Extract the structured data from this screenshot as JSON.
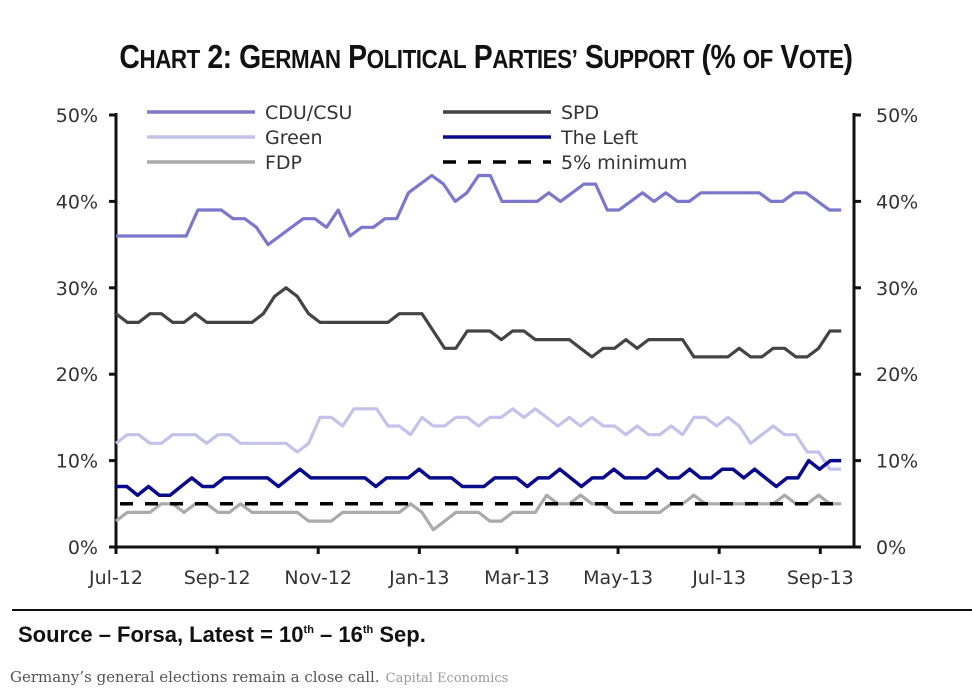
{
  "chart_data": {
    "type": "line",
    "title": "Chart 2: German Political Parties' Support (% of Vote)",
    "xlabel": "",
    "ylabel": "",
    "ylim": [
      0,
      50
    ],
    "y_ticks": [
      "0%",
      "10%",
      "20%",
      "30%",
      "40%",
      "50%"
    ],
    "y_tick_values": [
      0,
      10,
      20,
      30,
      40,
      50
    ],
    "x_tick_labels": [
      "Jul-12",
      "Sep-12",
      "Nov-12",
      "Jan-13",
      "Mar-13",
      "May-13",
      "Jul-13",
      "Sep-13"
    ],
    "x_tick_weeks": [
      0,
      8.7,
      17.4,
      26.1,
      34.5,
      43.2,
      51.9,
      60.6
    ],
    "x_range_weeks": [
      0,
      63.5
    ],
    "x_unit": "weekly polls",
    "legend_position": "top",
    "grid": false,
    "dual_y_axis": true,
    "series": [
      {
        "name": "CDU/CSU",
        "color": "#7b78cc",
        "values": [
          36,
          36,
          36,
          36,
          36,
          36,
          36,
          39,
          39,
          39,
          38,
          38,
          37,
          35,
          36,
          37,
          38,
          38,
          37,
          39,
          36,
          37,
          37,
          38,
          38,
          41,
          42,
          43,
          42,
          40,
          41,
          43,
          43,
          40,
          40,
          40,
          40,
          41,
          40,
          41,
          42,
          42,
          39,
          39,
          40,
          41,
          40,
          41,
          40,
          40,
          41,
          41,
          41,
          41,
          41,
          41,
          40,
          40,
          41,
          41,
          40,
          39,
          39
        ]
      },
      {
        "name": "SPD",
        "color": "#444444",
        "values": [
          27,
          26,
          26,
          27,
          27,
          26,
          26,
          27,
          26,
          26,
          26,
          26,
          26,
          27,
          29,
          30,
          29,
          27,
          26,
          26,
          26,
          26,
          26,
          26,
          26,
          27,
          27,
          27,
          25,
          23,
          23,
          25,
          25,
          25,
          24,
          25,
          25,
          24,
          24,
          24,
          24,
          23,
          22,
          23,
          23,
          24,
          23,
          24,
          24,
          24,
          24,
          22,
          22,
          22,
          22,
          23,
          22,
          22,
          23,
          23,
          22,
          22,
          23,
          25,
          25
        ]
      },
      {
        "name": "Green",
        "color": "#c4c2ea",
        "values": [
          12,
          13,
          13,
          12,
          12,
          13,
          13,
          13,
          12,
          13,
          13,
          12,
          12,
          12,
          12,
          12,
          11,
          12,
          15,
          15,
          14,
          16,
          16,
          16,
          14,
          14,
          13,
          15,
          14,
          14,
          15,
          15,
          14,
          15,
          15,
          16,
          15,
          16,
          15,
          14,
          15,
          14,
          15,
          14,
          14,
          13,
          14,
          13,
          13,
          14,
          13,
          15,
          15,
          14,
          15,
          14,
          12,
          13,
          14,
          13,
          13,
          11,
          11,
          9,
          9
        ]
      },
      {
        "name": "The Left",
        "color": "#0a0a8c",
        "values": [
          7,
          7,
          6,
          7,
          6,
          6,
          7,
          8,
          7,
          7,
          8,
          8,
          8,
          8,
          8,
          7,
          8,
          9,
          8,
          8,
          8,
          8,
          8,
          8,
          7,
          8,
          8,
          8,
          9,
          8,
          8,
          8,
          7,
          7,
          7,
          8,
          8,
          8,
          7,
          8,
          8,
          9,
          8,
          7,
          8,
          8,
          9,
          8,
          8,
          8,
          9,
          8,
          8,
          9,
          8,
          8,
          9,
          9,
          8,
          9,
          8,
          7,
          8,
          8,
          10,
          9,
          10,
          10
        ]
      },
      {
        "name": "FDP",
        "color": "#aaaaaa",
        "values": [
          3,
          4,
          4,
          4,
          5,
          5,
          4,
          5,
          5,
          4,
          4,
          5,
          4,
          4,
          4,
          4,
          4,
          3,
          3,
          3,
          4,
          4,
          4,
          4,
          4,
          4,
          5,
          4,
          2,
          3,
          4,
          4,
          4,
          3,
          3,
          4,
          4,
          4,
          6,
          5,
          5,
          6,
          5,
          5,
          4,
          4,
          4,
          4,
          4,
          5,
          5,
          6,
          5,
          5,
          5,
          5,
          5,
          5,
          5,
          6,
          5,
          5,
          6,
          5,
          5
        ]
      },
      {
        "name": "5% minimum",
        "color": "#000000",
        "dashed": true,
        "values": [
          5,
          5
        ]
      }
    ]
  },
  "footer": {
    "source_prefix": "Source – Forsa, Latest = 10",
    "sup1": "th",
    "source_mid": " – 16",
    "sup2": "th",
    "source_suffix": " Sep.",
    "caption": "Germany’s general elections remain a close call.",
    "credit": "Capital Economics"
  },
  "title_parts": {
    "a1": "C",
    "a2": "HART",
    "b": " 2: ",
    "c1": "G",
    "c2": "ERMAN",
    "d1": " P",
    "d2": "OLITICAL",
    "e1": " P",
    "e2": "ARTIES’",
    "f1": " S",
    "f2": "UPPORT",
    "g": " (% ",
    "h2": "OF",
    "i1": " V",
    "i2": "OTE",
    "j": ")"
  }
}
